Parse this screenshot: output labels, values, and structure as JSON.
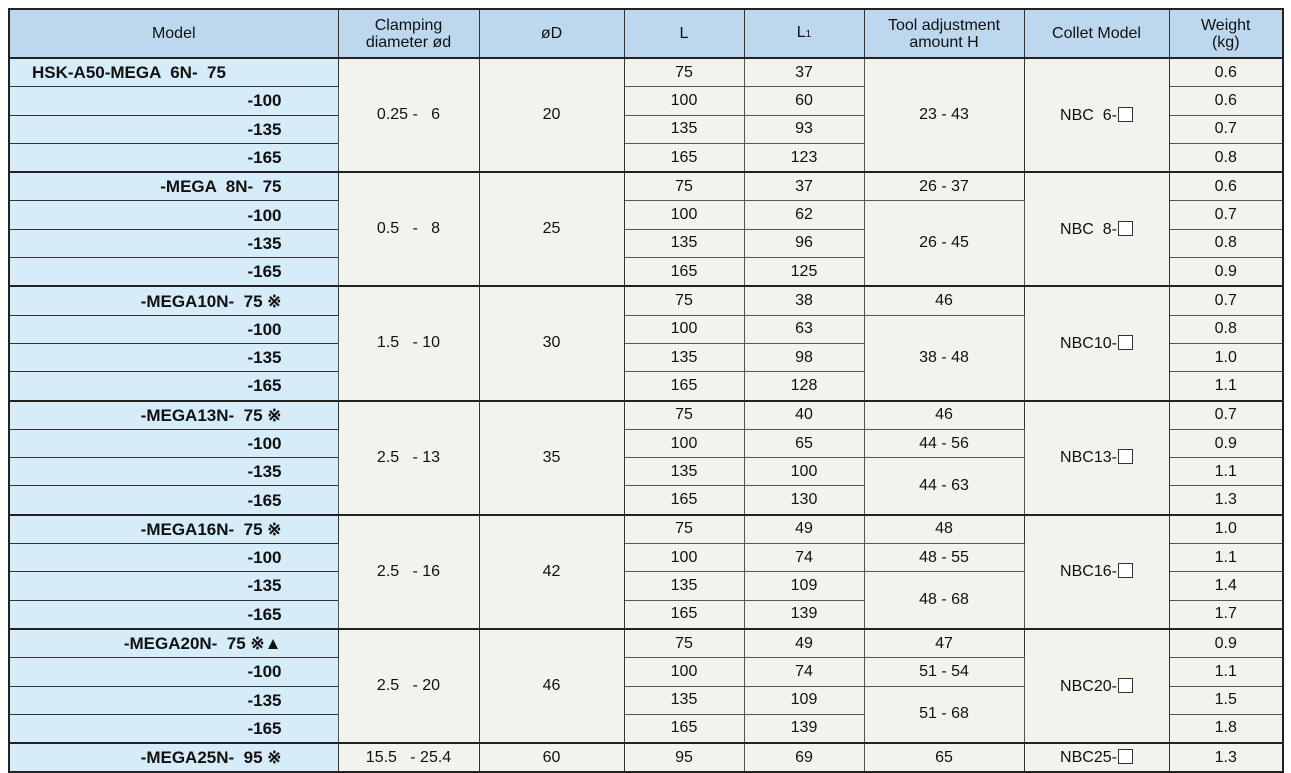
{
  "headers": {
    "model": "Model",
    "clamping": [
      "Clamping",
      "diameter ød"
    ],
    "d": "øD",
    "l": "L",
    "l1": "L",
    "l1_sub": "1",
    "h": [
      "Tool adjustment",
      "amount H"
    ],
    "collet": "Collet Model",
    "weight": [
      "Weight",
      "(kg)"
    ]
  },
  "groups": [
    {
      "models": [
        "HSK-A50-MEGA  6N-  75",
        "-100",
        "-135",
        "-165"
      ],
      "clamping": "0.25 -   6",
      "D": "20",
      "L": [
        "75",
        "100",
        "135",
        "165"
      ],
      "L1": [
        "37",
        "60",
        "93",
        "123"
      ],
      "H": [
        {
          "value": "23 - 43",
          "rows": 4
        }
      ],
      "collet": "NBC  6-",
      "weight": [
        "0.6",
        "0.6",
        "0.7",
        "0.8"
      ]
    },
    {
      "models": [
        "-MEGA  8N-  75",
        "-100",
        "-135",
        "-165"
      ],
      "clamping": "0.5   -   8",
      "D": "25",
      "L": [
        "75",
        "100",
        "135",
        "165"
      ],
      "L1": [
        "37",
        "62",
        "96",
        "125"
      ],
      "H": [
        {
          "value": "26 - 37",
          "rows": 1
        },
        {
          "value": "26 - 45",
          "rows": 3
        }
      ],
      "collet": "NBC  8-",
      "weight": [
        "0.6",
        "0.7",
        "0.8",
        "0.9"
      ]
    },
    {
      "models": [
        "-MEGA10N-  75 ※",
        "-100",
        "-135",
        "-165"
      ],
      "clamping": "1.5   - 10",
      "D": "30",
      "L": [
        "75",
        "100",
        "135",
        "165"
      ],
      "L1": [
        "38",
        "63",
        "98",
        "128"
      ],
      "H": [
        {
          "value": "46",
          "rows": 1
        },
        {
          "value": "38 - 48",
          "rows": 3
        }
      ],
      "collet": "NBC10-",
      "weight": [
        "0.7",
        "0.8",
        "1.0",
        "1.1"
      ]
    },
    {
      "models": [
        "-MEGA13N-  75 ※",
        "-100",
        "-135",
        "-165"
      ],
      "clamping": "2.5   - 13",
      "D": "35",
      "L": [
        "75",
        "100",
        "135",
        "165"
      ],
      "L1": [
        "40",
        "65",
        "100",
        "130"
      ],
      "H": [
        {
          "value": "46",
          "rows": 1
        },
        {
          "value": "44 - 56",
          "rows": 1
        },
        {
          "value": "44 - 63",
          "rows": 2
        }
      ],
      "collet": "NBC13-",
      "weight": [
        "0.7",
        "0.9",
        "1.1",
        "1.3"
      ]
    },
    {
      "models": [
        "-MEGA16N-  75 ※",
        "-100",
        "-135",
        "-165"
      ],
      "clamping": "2.5   - 16",
      "D": "42",
      "L": [
        "75",
        "100",
        "135",
        "165"
      ],
      "L1": [
        "49",
        "74",
        "109",
        "139"
      ],
      "H": [
        {
          "value": "48",
          "rows": 1
        },
        {
          "value": "48 - 55",
          "rows": 1
        },
        {
          "value": "48 - 68",
          "rows": 2
        }
      ],
      "collet": "NBC16-",
      "weight": [
        "1.0",
        "1.1",
        "1.4",
        "1.7"
      ]
    },
    {
      "models": [
        "-MEGA20N-  75 ※▲",
        "-100",
        "-135",
        "-165"
      ],
      "clamping": "2.5   - 20",
      "D": "46",
      "L": [
        "75",
        "100",
        "135",
        "165"
      ],
      "L1": [
        "49",
        "74",
        "109",
        "139"
      ],
      "H": [
        {
          "value": "47",
          "rows": 1
        },
        {
          "value": "51 - 54",
          "rows": 1
        },
        {
          "value": "51 - 68",
          "rows": 2
        }
      ],
      "collet": "NBC20-",
      "weight": [
        "0.9",
        "1.1",
        "1.5",
        "1.8"
      ]
    },
    {
      "models": [
        "-MEGA25N-  95 ※"
      ],
      "clamping": "15.5   - 25.4",
      "D": "60",
      "L": [
        "95"
      ],
      "L1": [
        "69"
      ],
      "H": [
        {
          "value": "65",
          "rows": 1
        }
      ],
      "collet": "NBC25-",
      "weight": [
        "1.3"
      ]
    }
  ],
  "colors": {
    "header_bg": "#bcd7ee",
    "model_bg": "#d6ecf9",
    "value_bg": "#f4f2ec"
  }
}
